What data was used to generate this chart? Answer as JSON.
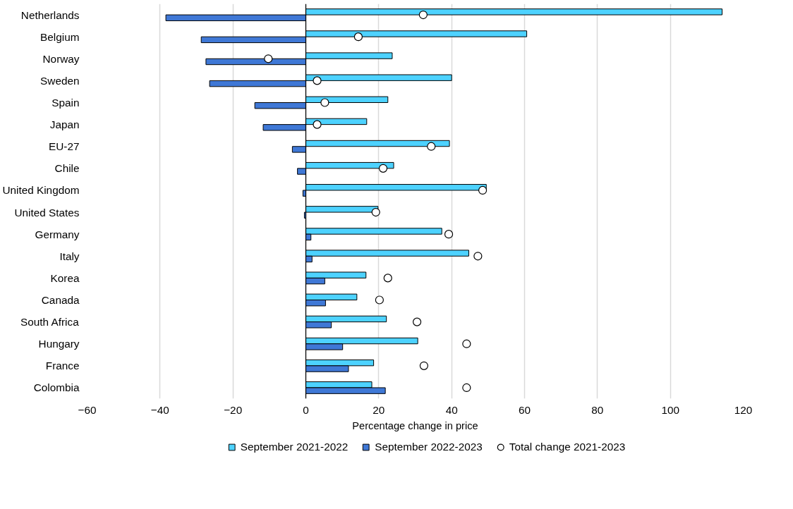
{
  "chart_data": {
    "type": "bar",
    "orientation": "horizontal",
    "xlabel": "Percentage change in price",
    "categories": [
      "Netherlands",
      "Belgium",
      "Norway",
      "Sweden",
      "Spain",
      "Japan",
      "EU-27",
      "Chile",
      "United Kingdom",
      "United States",
      "Germany",
      "Italy",
      "Korea",
      "Canada",
      "South Africa",
      "Hungary",
      "France",
      "Colombia"
    ],
    "series": [
      {
        "name": "September 2021-2022",
        "color": "#4dd2ff",
        "values": [
          114.2,
          60.6,
          23.7,
          40.0,
          22.5,
          16.7,
          39.4,
          24.1,
          49.5,
          19.8,
          37.3,
          44.7,
          16.5,
          14.0,
          22.1,
          30.7,
          18.6,
          18.1
        ]
      },
      {
        "name": "September 2022-2023",
        "color": "#3f78d6",
        "values": [
          -38.4,
          -28.7,
          -27.4,
          -26.4,
          -14.0,
          -11.7,
          -3.7,
          -2.3,
          -0.8,
          -0.4,
          1.4,
          1.7,
          5.2,
          5.4,
          7.0,
          10.1,
          11.7,
          21.8
        ]
      },
      {
        "name": "Total change 2021-2023",
        "type": "scatter",
        "marker": "circle",
        "color": "#ffffff",
        "values": [
          32.2,
          14.4,
          -10.3,
          3.1,
          5.2,
          3.1,
          34.4,
          21.2,
          48.5,
          19.2,
          39.2,
          47.2,
          22.5,
          20.2,
          30.5,
          44.1,
          32.4,
          44.1
        ]
      }
    ],
    "xlim": [
      -60,
      120
    ],
    "xticks": [
      -60,
      -40,
      -20,
      0,
      20,
      40,
      60,
      80,
      100,
      120
    ],
    "grid": "x",
    "legend": "bottom"
  }
}
